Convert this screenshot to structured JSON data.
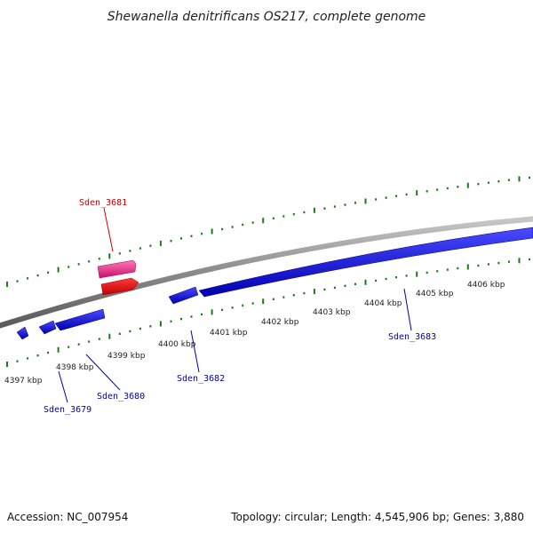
{
  "title": "Shewanella denitrificans OS217, complete genome",
  "footer": {
    "accession": "Accession: NC_007954",
    "summary": "Topology: circular; Length: 4,545,906 bp; Genes: 3,880"
  },
  "ticks": [
    "4397 kbp",
    "4398 kbp",
    "4399 kbp",
    "4400 kbp",
    "4401 kbp",
    "4402 kbp",
    "4403 kbp",
    "4404 kbp",
    "4405 kbp",
    "4406 kbp"
  ],
  "gene_labels": {
    "sden_3681": "Sden_3681",
    "sden_3679": "Sden_3679",
    "sden_3680": "Sden_3680",
    "sden_3682": "Sden_3682",
    "sden_3683": "Sden_3683"
  },
  "colors": {
    "backbone": "#8a8a8a",
    "tick": "#1a7a1a",
    "gene_forward": "#e0157a",
    "gene_rna": "#ee0000",
    "gene_reverse": "#0000dd",
    "label_red": "#cc0000",
    "label_blue": "#0000aa"
  }
}
